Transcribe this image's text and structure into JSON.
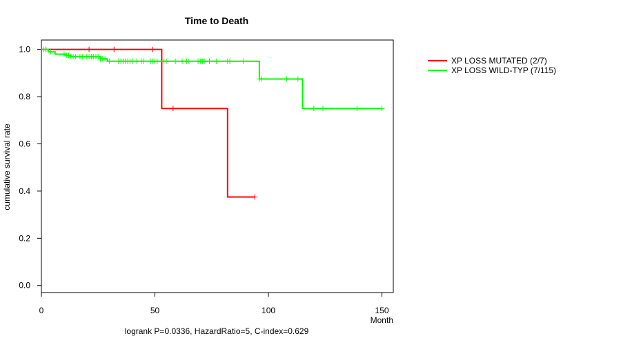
{
  "chart_data": {
    "type": "line",
    "title": "Time to Death",
    "xlabel": "Month",
    "ylabel": "cumulative survival rate",
    "xlim": [
      0,
      155
    ],
    "ylim": [
      -0.03,
      1.04
    ],
    "x_ticks": [
      0,
      50,
      100,
      150
    ],
    "y_ticks": [
      0.0,
      0.2,
      0.4,
      0.6,
      0.8,
      1.0
    ],
    "y_tick_labels": [
      "0.0",
      "0.2",
      "0.4",
      "0.6",
      "0.8",
      "1.0"
    ],
    "legend_position": "top-right-outside",
    "footnote": "logrank P=0.0336, HazardRatio=5, C-index=0.629",
    "series": [
      {
        "name": "XP LOSS MUTATED (2/7)",
        "color": "#ff0000",
        "steps": [
          [
            0,
            1.0
          ],
          [
            53,
            0.75
          ],
          [
            82,
            0.375
          ],
          [
            94,
            0.375
          ]
        ],
        "censored": [
          [
            2,
            1.0
          ],
          [
            21,
            1.0
          ],
          [
            32,
            1.0
          ],
          [
            49,
            1.0
          ],
          [
            58,
            0.75
          ],
          [
            94,
            0.375
          ]
        ]
      },
      {
        "name": "XP LOSS WILD-TYP (7/115)",
        "color": "#00ff00",
        "steps": [
          [
            0,
            1.0
          ],
          [
            3,
            0.99
          ],
          [
            6,
            0.98
          ],
          [
            11,
            0.975
          ],
          [
            13,
            0.97
          ],
          [
            19,
            0.97
          ],
          [
            26,
            0.96
          ],
          [
            29,
            0.95
          ],
          [
            96,
            0.875
          ],
          [
            115,
            0.75
          ],
          [
            150,
            0.75
          ]
        ],
        "censored": [
          [
            1,
            1.0
          ],
          [
            2,
            1.0
          ],
          [
            4,
            0.99
          ],
          [
            10,
            0.98
          ],
          [
            11,
            0.975
          ],
          [
            12,
            0.975
          ],
          [
            13,
            0.97
          ],
          [
            14,
            0.97
          ],
          [
            15,
            0.97
          ],
          [
            17,
            0.97
          ],
          [
            18,
            0.97
          ],
          [
            20,
            0.97
          ],
          [
            21,
            0.97
          ],
          [
            22,
            0.97
          ],
          [
            23,
            0.97
          ],
          [
            24,
            0.97
          ],
          [
            25,
            0.97
          ],
          [
            26,
            0.96
          ],
          [
            27,
            0.96
          ],
          [
            28,
            0.96
          ],
          [
            30,
            0.95
          ],
          [
            34,
            0.95
          ],
          [
            35,
            0.95
          ],
          [
            36,
            0.95
          ],
          [
            37,
            0.95
          ],
          [
            38,
            0.95
          ],
          [
            39,
            0.95
          ],
          [
            40,
            0.95
          ],
          [
            42,
            0.95
          ],
          [
            44,
            0.95
          ],
          [
            45,
            0.95
          ],
          [
            48,
            0.95
          ],
          [
            49,
            0.95
          ],
          [
            50,
            0.95
          ],
          [
            51,
            0.95
          ],
          [
            54,
            0.95
          ],
          [
            55,
            0.95
          ],
          [
            59,
            0.95
          ],
          [
            62,
            0.95
          ],
          [
            64,
            0.95
          ],
          [
            65,
            0.95
          ],
          [
            69,
            0.95
          ],
          [
            70,
            0.95
          ],
          [
            71,
            0.95
          ],
          [
            72,
            0.95
          ],
          [
            74,
            0.95
          ],
          [
            77,
            0.95
          ],
          [
            82,
            0.95
          ],
          [
            83,
            0.95
          ],
          [
            89,
            0.95
          ],
          [
            96,
            0.875
          ],
          [
            97,
            0.875
          ],
          [
            108,
            0.875
          ],
          [
            113,
            0.875
          ],
          [
            120,
            0.75
          ],
          [
            124,
            0.75
          ],
          [
            139,
            0.75
          ],
          [
            150,
            0.75
          ]
        ]
      }
    ]
  }
}
